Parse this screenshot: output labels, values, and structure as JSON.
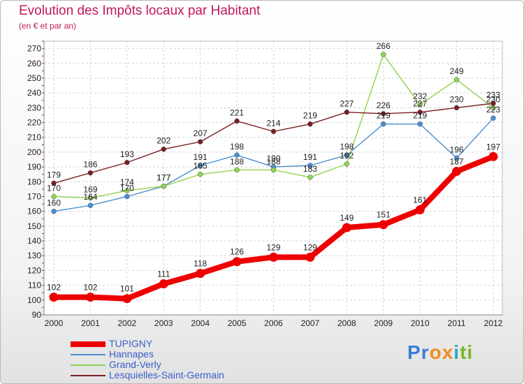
{
  "chart_data": {
    "type": "line",
    "title": "Evolution des Impôts locaux par Habitant",
    "subtitle": "(en € et par an)",
    "xlabel": "",
    "ylabel": "",
    "x": [
      2000,
      2001,
      2002,
      2003,
      2004,
      2005,
      2006,
      2007,
      2008,
      2009,
      2010,
      2011,
      2012
    ],
    "ylim": [
      90,
      275
    ],
    "yticks": [
      90,
      100,
      110,
      120,
      130,
      140,
      150,
      160,
      170,
      180,
      190,
      200,
      210,
      220,
      230,
      240,
      250,
      260,
      270
    ],
    "grid": true,
    "legend_position": "bottom-left",
    "series": [
      {
        "name": "Hannapes",
        "color": "#4a8fd0",
        "values": [
          160,
          164,
          170,
          177,
          191,
          198,
          190,
          191,
          198,
          219,
          219,
          196,
          223
        ]
      },
      {
        "name": "Grand-Verly",
        "color": "#8fd450",
        "values": [
          170,
          169,
          174,
          177,
          185,
          188,
          188,
          183,
          192,
          266,
          232,
          249,
          230
        ]
      },
      {
        "name": "Lesquielles-Saint-Germain",
        "color": "#7a1e22",
        "values": [
          179,
          186,
          193,
          202,
          207,
          221,
          214,
          219,
          227,
          226,
          227,
          230,
          233
        ]
      },
      {
        "name": "TUPIGNY",
        "color": "#ee0000",
        "values": [
          102,
          102,
          101,
          111,
          118,
          126,
          129,
          129,
          149,
          151,
          161,
          187,
          197
        ]
      }
    ]
  },
  "legend": {
    "items": [
      {
        "label": "TUPIGNY",
        "color": "#ee0000"
      },
      {
        "label": "Hannapes",
        "color": "#4a8fd0"
      },
      {
        "label": "Grand-Verly",
        "color": "#8fd450"
      },
      {
        "label": "Lesquielles-Saint-Germain",
        "color": "#7a1e22"
      }
    ]
  },
  "logo": {
    "letters": [
      "P",
      "r",
      "o",
      "x",
      "i",
      "t",
      "i"
    ],
    "colors": [
      "#3b7dd8",
      "#3b7dd8",
      "#f28c1e",
      "#f28c1e",
      "#2aa5c8",
      "#78b82a",
      "#78b82a"
    ]
  }
}
